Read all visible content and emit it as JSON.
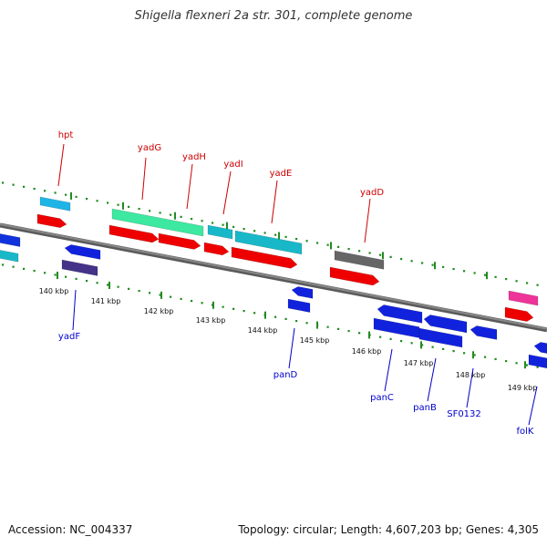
{
  "title": "Shigella flexneri 2a str. 301, complete genome",
  "footer": {
    "accession": "Accession: NC_004337",
    "summary": "Topology: circular; Length: 4,607,203 bp; Genes: 4,305"
  },
  "colors": {
    "backbone": "#888888",
    "tick": "#228b22",
    "top_label": "#cc0000",
    "bottom_label": "#0000cc"
  },
  "kbp_labels": [
    "140 kbp",
    "141 kbp",
    "142 kbp",
    "143 kbp",
    "144 kbp",
    "145 kbp",
    "146 kbp",
    "147 kbp",
    "148 kbp",
    "149 kbp"
  ],
  "gene_labels_top": [
    "hpt",
    "yadG",
    "yadH",
    "yadI",
    "yadE",
    "yadD"
  ],
  "gene_labels_bottom": [
    "yadF",
    "panD",
    "panC",
    "panB",
    "SF0132",
    "folK"
  ]
}
